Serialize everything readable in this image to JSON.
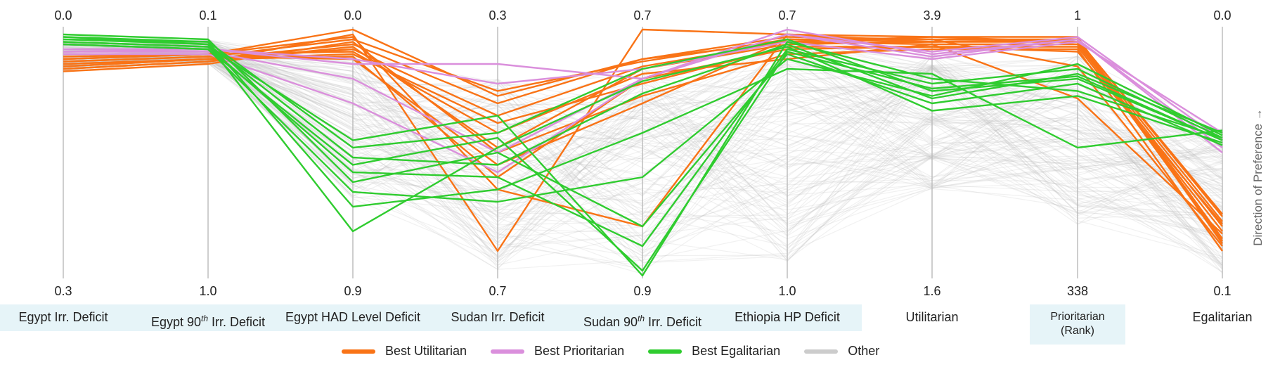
{
  "chart_data": {
    "type": "parallel_coordinates",
    "axes": [
      {
        "name": "Egypt Irr. Deficit",
        "top": "0.0",
        "bottom": "0.3",
        "highlighted": true
      },
      {
        "name_prefix": "Egypt 90",
        "name_sup": "th",
        "name_suffix": " Irr. Deficit",
        "top": "0.1",
        "bottom": "1.0",
        "highlighted": true
      },
      {
        "name": "Egypt HAD Level Deficit",
        "top": "0.0",
        "bottom": "0.9",
        "highlighted": true
      },
      {
        "name": "Sudan Irr. Deficit",
        "top": "0.3",
        "bottom": "0.7",
        "highlighted": true
      },
      {
        "name_prefix": "Sudan 90",
        "name_sup": "th",
        "name_suffix": " Irr. Deficit",
        "top": "0.7",
        "bottom": "0.9",
        "highlighted": true
      },
      {
        "name": "Ethiopia HP Deficit",
        "top": "0.7",
        "bottom": "1.0",
        "highlighted": true
      },
      {
        "name": "Utilitarian",
        "top": "3.9",
        "bottom": "1.6",
        "highlighted": false
      },
      {
        "name_line1": "Prioritarian",
        "name_line2": "(Rank)",
        "top": "1",
        "bottom": "338",
        "highlighted": true
      },
      {
        "name": "Egalitarian",
        "top": "0.0",
        "bottom": "0.1",
        "highlighted": false
      }
    ],
    "direction_label": "Direction of Preference →",
    "legend": [
      {
        "label": "Best Utilitarian",
        "color": "#f97316"
      },
      {
        "label": "Best Prioritarian",
        "color": "#da8fdc"
      },
      {
        "label": "Best Egalitarian",
        "color": "#2fcc2f"
      },
      {
        "label": "Other",
        "color": "#cccccc"
      }
    ],
    "series": [
      {
        "group": "Best Utilitarian",
        "color": "#f97316",
        "lines": [
          [
            0.12,
            0.1,
            0.0,
            0.27,
            0.12,
            0.03,
            0.04,
            0.04,
            0.75
          ],
          [
            0.13,
            0.11,
            0.04,
            0.25,
            0.13,
            0.04,
            0.05,
            0.05,
            0.78
          ],
          [
            0.14,
            0.12,
            0.08,
            0.35,
            0.15,
            0.05,
            0.06,
            0.06,
            0.8
          ],
          [
            0.15,
            0.12,
            0.11,
            0.6,
            0.2,
            0.08,
            0.07,
            0.07,
            0.82
          ],
          [
            0.16,
            0.13,
            0.02,
            0.9,
            0.0,
            0.02,
            0.05,
            0.04,
            0.85
          ],
          [
            0.11,
            0.1,
            0.03,
            0.65,
            0.8,
            0.02,
            0.03,
            0.03,
            0.87
          ],
          [
            0.17,
            0.14,
            0.05,
            0.5,
            0.27,
            0.1,
            0.08,
            0.08,
            0.9
          ],
          [
            0.14,
            0.12,
            0.06,
            0.3,
            0.12,
            0.05,
            0.03,
            0.05,
            0.86
          ],
          [
            0.13,
            0.11,
            0.12,
            0.55,
            0.3,
            0.04,
            0.04,
            0.15,
            0.88
          ],
          [
            0.12,
            0.1,
            0.09,
            0.42,
            0.18,
            0.12,
            0.06,
            0.28,
            0.83
          ],
          [
            0.16,
            0.13,
            0.07,
            0.48,
            0.16,
            0.06,
            0.05,
            0.04,
            0.76
          ],
          [
            0.15,
            0.12,
            0.1,
            0.38,
            0.22,
            0.07,
            0.07,
            0.09,
            0.79
          ]
        ]
      },
      {
        "group": "Best Prioritarian",
        "color": "#da8fdc",
        "lines": [
          [
            0.08,
            0.08,
            0.14,
            0.14,
            0.2,
            0.0,
            0.1,
            0.04,
            0.5
          ],
          [
            0.09,
            0.09,
            0.2,
            0.5,
            0.2,
            0.02,
            0.09,
            0.03,
            0.45
          ],
          [
            0.1,
            0.1,
            0.3,
            0.58,
            0.2,
            0.02,
            0.11,
            0.04,
            0.48
          ],
          [
            0.09,
            0.08,
            0.12,
            0.22,
            0.16,
            0.05,
            0.12,
            0.05,
            0.42
          ]
        ]
      },
      {
        "group": "Best Egalitarian",
        "color": "#2fcc2f",
        "lines": [
          [
            0.03,
            0.05,
            0.48,
            0.42,
            0.16,
            0.04,
            0.25,
            0.2,
            0.45
          ],
          [
            0.04,
            0.06,
            0.52,
            0.55,
            0.26,
            0.06,
            0.28,
            0.18,
            0.42
          ],
          [
            0.05,
            0.07,
            0.58,
            0.6,
            0.88,
            0.08,
            0.22,
            0.16,
            0.44
          ],
          [
            0.02,
            0.04,
            0.62,
            0.5,
            0.8,
            0.1,
            0.3,
            0.22,
            0.47
          ],
          [
            0.06,
            0.08,
            0.66,
            0.7,
            0.6,
            0.12,
            0.27,
            0.14,
            0.43
          ],
          [
            0.04,
            0.05,
            0.72,
            0.65,
            0.42,
            0.16,
            0.18,
            0.48,
            0.41
          ],
          [
            0.03,
            0.06,
            0.82,
            0.48,
            0.21,
            0.07,
            0.33,
            0.27,
            0.46
          ],
          [
            0.05,
            0.07,
            0.45,
            0.35,
            1.0,
            0.05,
            0.2,
            0.25,
            0.44
          ],
          [
            0.06,
            0.08,
            0.55,
            0.44,
            0.98,
            0.09,
            0.24,
            0.19,
            0.45
          ]
        ]
      }
    ]
  }
}
